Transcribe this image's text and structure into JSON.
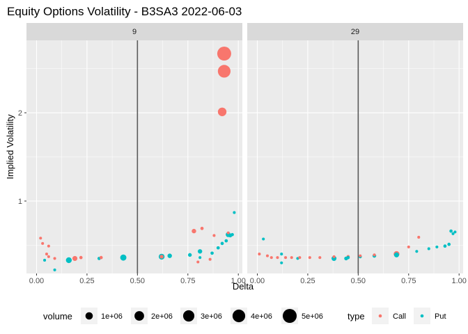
{
  "chart_data": {
    "type": "scatter",
    "title": "Equity Options Volatility - B3SA3 2022-06-03",
    "xlabel": "Delta",
    "ylabel": "Implied Volatility",
    "xlim": [
      -0.05,
      1.02
    ],
    "ylim": [
      0.18,
      2.82
    ],
    "x_ticks": [
      0,
      0.25,
      0.5,
      0.75,
      1
    ],
    "x_tick_labels": [
      "0.00",
      "0.25",
      "0.50",
      "0.75",
      "1.00"
    ],
    "y_ticks": [
      1,
      2
    ],
    "y_tick_labels": [
      "1",
      "2"
    ],
    "vline_x": 0.5,
    "grid": true,
    "legend_position": "bottom",
    "colors": {
      "Call": "#F8766D",
      "Put": "#00BFC4",
      "panel": "#EBEBEB",
      "strip": "#D9D9D9",
      "grid": "#FFFFFF",
      "vline": "#595959"
    },
    "legend": {
      "volume_title": "volume",
      "volume_entries": [
        {
          "label": "1e+06",
          "value": 1000000
        },
        {
          "label": "2e+06",
          "value": 2000000
        },
        {
          "label": "3e+06",
          "value": 3000000
        },
        {
          "label": "4e+06",
          "value": 4000000
        },
        {
          "label": "5e+06",
          "value": 5000000
        }
      ],
      "type_title": "type",
      "type_entries": [
        {
          "label": "Call",
          "key": "Call"
        },
        {
          "label": "Put",
          "key": "Put"
        }
      ]
    },
    "panels": [
      {
        "label": "9",
        "points": [
          {
            "x": 0.02,
            "y": 0.58,
            "type": "Call",
            "volume": 20000
          },
          {
            "x": 0.03,
            "y": 0.52,
            "type": "Call",
            "volume": 20000
          },
          {
            "x": 0.06,
            "y": 0.49,
            "type": "Call",
            "volume": 20000
          },
          {
            "x": 0.05,
            "y": 0.4,
            "type": "Call",
            "volume": 20000
          },
          {
            "x": 0.06,
            "y": 0.37,
            "type": "Call",
            "volume": 20000
          },
          {
            "x": 0.09,
            "y": 0.35,
            "type": "Call",
            "volume": 20000
          },
          {
            "x": 0.04,
            "y": 0.33,
            "type": "Put",
            "volume": 20000
          },
          {
            "x": 0.09,
            "y": 0.22,
            "type": "Put",
            "volume": 20000
          },
          {
            "x": 0.16,
            "y": 0.33,
            "type": "Put",
            "volume": 500000
          },
          {
            "x": 0.19,
            "y": 0.35,
            "type": "Call",
            "volume": 300000
          },
          {
            "x": 0.22,
            "y": 0.36,
            "type": "Call",
            "volume": 50000
          },
          {
            "x": 0.31,
            "y": 0.35,
            "type": "Put",
            "volume": 50000
          },
          {
            "x": 0.32,
            "y": 0.36,
            "type": "Call",
            "volume": 50000
          },
          {
            "x": 0.43,
            "y": 0.36,
            "type": "Put",
            "volume": 600000
          },
          {
            "x": 0.62,
            "y": 0.37,
            "type": "Put",
            "volume": 500000
          },
          {
            "x": 0.62,
            "y": 0.37,
            "type": "Call",
            "volume": 100000
          },
          {
            "x": 0.66,
            "y": 0.38,
            "type": "Put",
            "volume": 200000
          },
          {
            "x": 0.76,
            "y": 0.39,
            "type": "Put",
            "volume": 100000
          },
          {
            "x": 0.78,
            "y": 0.66,
            "type": "Call",
            "volume": 200000
          },
          {
            "x": 0.8,
            "y": 0.31,
            "type": "Call",
            "volume": 20000
          },
          {
            "x": 0.81,
            "y": 0.36,
            "type": "Put",
            "volume": 20000
          },
          {
            "x": 0.81,
            "y": 0.43,
            "type": "Put",
            "volume": 200000
          },
          {
            "x": 0.82,
            "y": 0.69,
            "type": "Call",
            "volume": 50000
          },
          {
            "x": 0.86,
            "y": 0.34,
            "type": "Call",
            "volume": 20000
          },
          {
            "x": 0.87,
            "y": 0.41,
            "type": "Put",
            "volume": 50000
          },
          {
            "x": 0.88,
            "y": 0.61,
            "type": "Call",
            "volume": 20000
          },
          {
            "x": 0.9,
            "y": 0.47,
            "type": "Put",
            "volume": 50000
          },
          {
            "x": 0.92,
            "y": 0.52,
            "type": "Put",
            "volume": 50000
          },
          {
            "x": 0.92,
            "y": 2.01,
            "type": "Call",
            "volume": 1500000
          },
          {
            "x": 0.93,
            "y": 2.47,
            "type": "Call",
            "volume": 4000000
          },
          {
            "x": 0.93,
            "y": 2.67,
            "type": "Call",
            "volume": 5000000
          },
          {
            "x": 0.94,
            "y": 0.55,
            "type": "Put",
            "volume": 50000
          },
          {
            "x": 0.95,
            "y": 0.62,
            "type": "Put",
            "volume": 300000
          },
          {
            "x": 0.95,
            "y": 0.64,
            "type": "Call",
            "volume": 20000
          },
          {
            "x": 0.96,
            "y": 0.61,
            "type": "Put",
            "volume": 100000
          },
          {
            "x": 0.97,
            "y": 0.62,
            "type": "Put",
            "volume": 50000
          },
          {
            "x": 0.98,
            "y": 0.87,
            "type": "Put",
            "volume": 20000
          }
        ]
      },
      {
        "label": "29",
        "points": [
          {
            "x": 0.01,
            "y": 0.4,
            "type": "Call",
            "volume": 20000
          },
          {
            "x": 0.03,
            "y": 0.57,
            "type": "Put",
            "volume": 20000
          },
          {
            "x": 0.05,
            "y": 0.38,
            "type": "Call",
            "volume": 20000
          },
          {
            "x": 0.07,
            "y": 0.36,
            "type": "Call",
            "volume": 20000
          },
          {
            "x": 0.1,
            "y": 0.36,
            "type": "Call",
            "volume": 20000
          },
          {
            "x": 0.12,
            "y": 0.4,
            "type": "Put",
            "volume": 20000
          },
          {
            "x": 0.12,
            "y": 0.3,
            "type": "Put",
            "volume": 20000
          },
          {
            "x": 0.14,
            "y": 0.36,
            "type": "Call",
            "volume": 20000
          },
          {
            "x": 0.17,
            "y": 0.36,
            "type": "Call",
            "volume": 20000
          },
          {
            "x": 0.2,
            "y": 0.35,
            "type": "Put",
            "volume": 20000
          },
          {
            "x": 0.21,
            "y": 0.36,
            "type": "Call",
            "volume": 20000
          },
          {
            "x": 0.26,
            "y": 0.36,
            "type": "Call",
            "volume": 20000
          },
          {
            "x": 0.31,
            "y": 0.36,
            "type": "Call",
            "volume": 20000
          },
          {
            "x": 0.38,
            "y": 0.35,
            "type": "Put",
            "volume": 300000
          },
          {
            "x": 0.38,
            "y": 0.37,
            "type": "Call",
            "volume": 20000
          },
          {
            "x": 0.44,
            "y": 0.35,
            "type": "Put",
            "volume": 100000
          },
          {
            "x": 0.45,
            "y": 0.37,
            "type": "Call",
            "volume": 50000
          },
          {
            "x": 0.45,
            "y": 0.36,
            "type": "Put",
            "volume": 50000
          },
          {
            "x": 0.51,
            "y": 0.37,
            "type": "Put",
            "volume": 50000
          },
          {
            "x": 0.51,
            "y": 0.38,
            "type": "Call",
            "volume": 20000
          },
          {
            "x": 0.58,
            "y": 0.38,
            "type": "Put",
            "volume": 100000
          },
          {
            "x": 0.58,
            "y": 0.39,
            "type": "Call",
            "volume": 20000
          },
          {
            "x": 0.69,
            "y": 0.4,
            "type": "Call",
            "volume": 500000
          },
          {
            "x": 0.69,
            "y": 0.39,
            "type": "Put",
            "volume": 300000
          },
          {
            "x": 0.75,
            "y": 0.48,
            "type": "Call",
            "volume": 20000
          },
          {
            "x": 0.79,
            "y": 0.43,
            "type": "Put",
            "volume": 20000
          },
          {
            "x": 0.8,
            "y": 0.59,
            "type": "Call",
            "volume": 20000
          },
          {
            "x": 0.85,
            "y": 0.46,
            "type": "Put",
            "volume": 20000
          },
          {
            "x": 0.89,
            "y": 0.48,
            "type": "Put",
            "volume": 20000
          },
          {
            "x": 0.93,
            "y": 0.49,
            "type": "Put",
            "volume": 50000
          },
          {
            "x": 0.95,
            "y": 0.51,
            "type": "Put",
            "volume": 50000
          },
          {
            "x": 0.96,
            "y": 0.66,
            "type": "Put",
            "volume": 50000
          },
          {
            "x": 0.97,
            "y": 0.63,
            "type": "Put",
            "volume": 20000
          },
          {
            "x": 0.98,
            "y": 0.65,
            "type": "Put",
            "volume": 20000
          }
        ]
      }
    ]
  }
}
